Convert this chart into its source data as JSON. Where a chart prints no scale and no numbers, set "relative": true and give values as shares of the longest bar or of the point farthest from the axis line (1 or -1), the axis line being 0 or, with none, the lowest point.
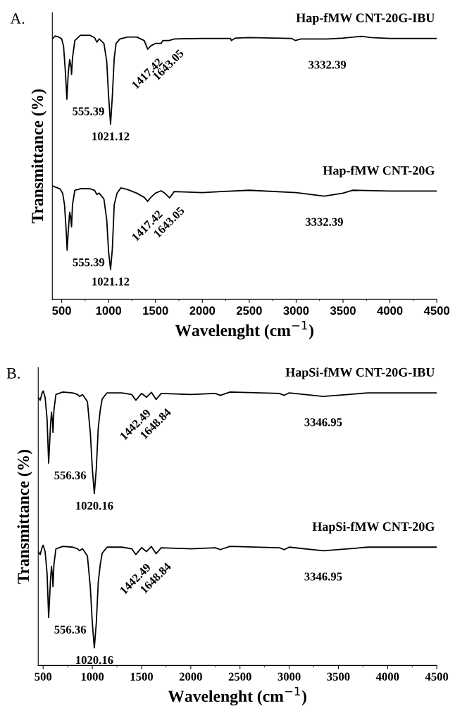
{
  "chart_data": [
    {
      "type": "line",
      "title": "A.",
      "xlabel": "Wavelenght (cm$^{−1}$)",
      "ylabel": "Transmittance (%)",
      "relative": true,
      "xlim": [
        400,
        4500
      ],
      "xticks": [
        500,
        1000,
        1500,
        2000,
        2500,
        3000,
        3500,
        4000,
        4500
      ],
      "grid": false,
      "legend": false,
      "marker": "none",
      "line_style": "solid",
      "series": [
        {
          "name": "Hap-fMW CNT-20G-IBU",
          "color": "#000000",
          "x": [
            400,
            430,
            470,
            500,
            520,
            540,
            555,
            570,
            585,
            600,
            605,
            615,
            640,
            700,
            800,
            850,
            875,
            900,
            950,
            980,
            1000,
            1021,
            1040,
            1060,
            1080,
            1120,
            1200,
            1300,
            1380,
            1417,
            1450,
            1500,
            1560,
            1580,
            1643,
            1700,
            2000,
            2300,
            2310,
            2350,
            2500,
            2950,
            2990,
            3050,
            3332,
            3500,
            3700,
            3800,
            4000,
            4500
          ],
          "values": [
            0.986,
            0.997,
            0.993,
            0.986,
            0.958,
            0.858,
            0.758,
            0.858,
            0.908,
            0.88,
            0.852,
            0.913,
            0.98,
            1.0,
            1.0,
            0.991,
            0.974,
            0.986,
            0.969,
            0.902,
            0.769,
            0.663,
            0.769,
            0.913,
            0.969,
            0.986,
            0.993,
            0.993,
            0.98,
            0.947,
            0.96,
            0.969,
            0.969,
            0.98,
            0.98,
            0.986,
            0.988,
            0.988,
            0.98,
            0.989,
            0.991,
            0.988,
            0.98,
            0.986,
            0.986,
            0.989,
            0.996,
            0.991,
            0.988,
            0.988
          ]
        },
        {
          "name": "Hap-fMW CNT-20G",
          "color": "#000000",
          "x": [
            400,
            440,
            480,
            510,
            530,
            550,
            558,
            570,
            585,
            595,
            605,
            615,
            640,
            700,
            800,
            850,
            875,
            900,
            950,
            980,
            1000,
            1021,
            1040,
            1060,
            1090,
            1130,
            1200,
            1300,
            1380,
            1417,
            1450,
            1500,
            1560,
            1600,
            1650,
            1700,
            2000,
            2200,
            2500,
            3000,
            3300,
            3500,
            3600,
            4000,
            4500
          ],
          "values": [
            0.43,
            0.424,
            0.419,
            0.402,
            0.358,
            0.247,
            0.186,
            0.258,
            0.33,
            0.313,
            0.274,
            0.358,
            0.413,
            0.419,
            0.419,
            0.413,
            0.397,
            0.402,
            0.38,
            0.302,
            0.18,
            0.113,
            0.191,
            0.358,
            0.402,
            0.422,
            0.416,
            0.402,
            0.386,
            0.371,
            0.386,
            0.402,
            0.411,
            0.402,
            0.384,
            0.408,
            0.404,
            0.408,
            0.413,
            0.404,
            0.391,
            0.402,
            0.413,
            0.41,
            0.41
          ]
        }
      ],
      "annotations": [
        {
          "text": "555.39",
          "x": 555,
          "y": 0.758
        },
        {
          "text": "1021.12",
          "x": 1021,
          "y": 0.663
        },
        {
          "text": "1417.42",
          "x": 1417,
          "y": 0.947
        },
        {
          "text": "1643.05",
          "x": 1643,
          "y": 0.98
        },
        {
          "text": "3332.39",
          "x": 3332,
          "y": 0.986
        },
        {
          "text": "555.39",
          "x": 558,
          "y": 0.186
        },
        {
          "text": "1021.12",
          "x": 1021,
          "y": 0.113
        },
        {
          "text": "1417.42",
          "x": 1417,
          "y": 0.371
        },
        {
          "text": "1643.05",
          "x": 1650,
          "y": 0.384
        },
        {
          "text": "3332.39",
          "x": 3300,
          "y": 0.391
        }
      ]
    },
    {
      "type": "line",
      "title": "B.",
      "xlabel": "Wavelenght (cm$^{−1}$)",
      "ylabel": "Transmittance (%)",
      "relative": true,
      "xlim": [
        450,
        4500
      ],
      "xticks": [
        500,
        1000,
        1500,
        2000,
        2500,
        3000,
        3500,
        4000,
        4500
      ],
      "grid": false,
      "legend": false,
      "marker": "none",
      "line_style": "solid",
      "series": [
        {
          "name": "HapSi-fMW CNT-20G-IBU",
          "color": "#000000",
          "x": [
            450,
            470,
            490,
            500,
            520,
            540,
            556,
            575,
            585,
            595,
            600,
            610,
            630,
            700,
            800,
            850,
            870,
            900,
            950,
            980,
            1000,
            1020,
            1040,
            1060,
            1080,
            1100,
            1150,
            1300,
            1400,
            1442,
            1470,
            1500,
            1550,
            1600,
            1648,
            1700,
            2000,
            2250,
            2300,
            2400,
            2900,
            2950,
            3000,
            3346,
            3600,
            3800,
            4500
          ],
          "values": [
            0.977,
            0.966,
            0.993,
            1.0,
            0.977,
            0.897,
            0.737,
            0.876,
            0.923,
            0.886,
            0.849,
            0.932,
            0.987,
            0.996,
            0.993,
            0.987,
            0.98,
            0.987,
            0.961,
            0.844,
            0.716,
            0.626,
            0.716,
            0.865,
            0.929,
            0.971,
            0.993,
            0.993,
            0.987,
            0.966,
            0.978,
            0.991,
            0.977,
            0.995,
            0.969,
            0.991,
            0.987,
            0.991,
            0.984,
            0.996,
            0.991,
            0.984,
            0.993,
            0.98,
            0.987,
            0.993,
            0.993
          ]
        },
        {
          "name": "HapSi-fMW CNT-20G",
          "color": "#000000",
          "x": [
            450,
            470,
            490,
            500,
            520,
            540,
            556,
            575,
            585,
            595,
            600,
            610,
            630,
            700,
            800,
            850,
            870,
            900,
            950,
            980,
            1000,
            1020,
            1040,
            1060,
            1080,
            1100,
            1150,
            1300,
            1400,
            1442,
            1470,
            1500,
            1550,
            1600,
            1648,
            1700,
            2000,
            2250,
            2300,
            2400,
            2900,
            2950,
            3000,
            3346,
            3600,
            3800,
            4500
          ],
          "values": [
            0.415,
            0.404,
            0.431,
            0.438,
            0.415,
            0.335,
            0.175,
            0.314,
            0.361,
            0.324,
            0.287,
            0.37,
            0.425,
            0.434,
            0.431,
            0.425,
            0.418,
            0.425,
            0.399,
            0.282,
            0.154,
            0.064,
            0.154,
            0.303,
            0.367,
            0.409,
            0.431,
            0.431,
            0.425,
            0.404,
            0.416,
            0.429,
            0.415,
            0.433,
            0.407,
            0.429,
            0.425,
            0.429,
            0.422,
            0.434,
            0.429,
            0.422,
            0.431,
            0.418,
            0.425,
            0.431,
            0.431
          ]
        }
      ],
      "annotations": [
        {
          "text": "556.36",
          "x": 556,
          "y": 0.737
        },
        {
          "text": "1020.16",
          "x": 1020,
          "y": 0.626
        },
        {
          "text": "1442.49",
          "x": 1442,
          "y": 0.966
        },
        {
          "text": "1648.84",
          "x": 1648,
          "y": 0.969
        },
        {
          "text": "3346.95",
          "x": 3346,
          "y": 0.98
        },
        {
          "text": "556.36",
          "x": 556,
          "y": 0.175
        },
        {
          "text": "1020.16",
          "x": 1020,
          "y": 0.064
        },
        {
          "text": "1442.49",
          "x": 1442,
          "y": 0.404
        },
        {
          "text": "1648.84",
          "x": 1648,
          "y": 0.407
        },
        {
          "text": "3346.95",
          "x": 3346,
          "y": 0.418
        }
      ]
    }
  ]
}
